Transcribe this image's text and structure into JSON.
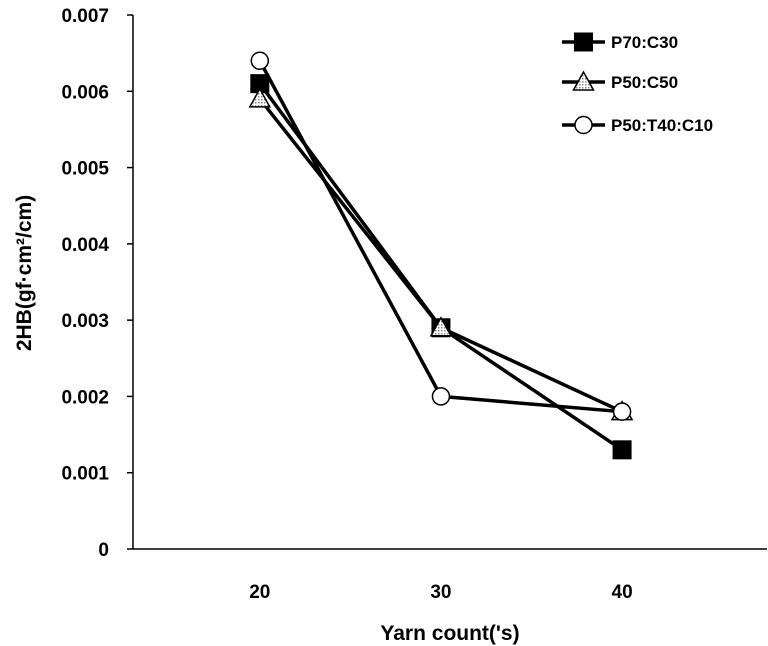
{
  "chart_data": {
    "type": "line",
    "title": "",
    "xlabel": "Yarn count('s)",
    "ylabel": "2HB(gf·cm²/cm)",
    "categories": [
      "20",
      "30",
      "40"
    ],
    "x": [
      20,
      30,
      40
    ],
    "xlim": [
      13,
      48
    ],
    "ylim": [
      0,
      0.007
    ],
    "y_ticks": [
      "0",
      "0.001",
      "0.002",
      "0.003",
      "0.004",
      "0.005",
      "0.006",
      "0.007"
    ],
    "legend_position": "top-right",
    "grid": false,
    "series": [
      {
        "name": "P70:C30",
        "marker": "square",
        "values": [
          0.0061,
          0.0029,
          0.0013
        ]
      },
      {
        "name": "P50:C50",
        "marker": "triangle",
        "values": [
          0.0059,
          0.0029,
          0.0018
        ]
      },
      {
        "name": "P50:T40:C10",
        "marker": "circle",
        "values": [
          0.0064,
          0.002,
          0.0018
        ]
      }
    ],
    "colors": {
      "line": "#000000",
      "fill_dark": "#000000",
      "fill_light": "#ffffff",
      "hatch": "#9a9a9a"
    }
  }
}
